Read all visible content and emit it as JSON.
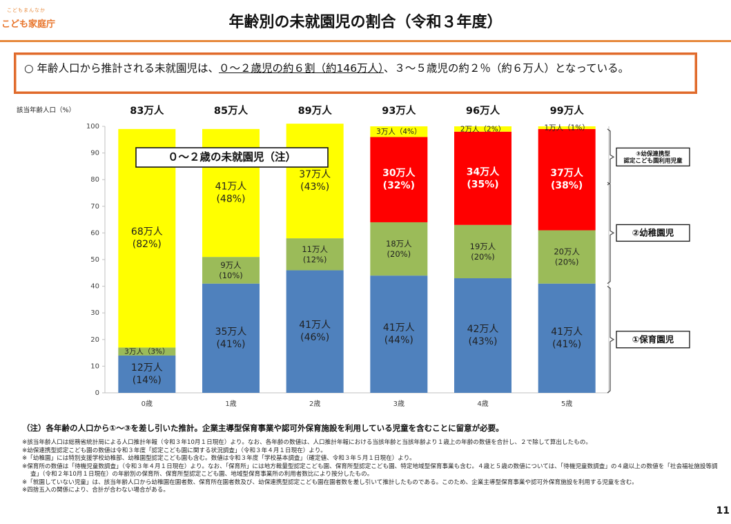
{
  "logo": {
    "tagline": "こどもまんなか",
    "name": "こども家庭庁"
  },
  "page_title": "年齢別の未就園児の割合（令和３年度）",
  "summary": {
    "bullet": "○",
    "text_before": "年齢人口から推計される未就園児は、",
    "underlined": "０～２歳児の約６割（約146万人）",
    "text_after": "、３～５歳児の約２％（約６万人）となっている。"
  },
  "chart_data": {
    "type": "bar",
    "stacked": true,
    "ylabel": "該当年齢人口（%）",
    "ylim": [
      0,
      100
    ],
    "yticks": [
      0,
      10,
      20,
      30,
      40,
      50,
      60,
      70,
      80,
      90,
      100
    ],
    "grid": false,
    "categories": [
      "0歳",
      "1歳",
      "2歳",
      "3歳",
      "4歳",
      "5歳"
    ],
    "totals": [
      "83万人",
      "85万人",
      "89万人",
      "93万人",
      "96万人",
      "99万人"
    ],
    "series": [
      {
        "key": "hoikuen",
        "color": "#4f81bd",
        "textColor": "#1f1f1f",
        "bold": false,
        "values": [
          14,
          41,
          46,
          44,
          43,
          41
        ],
        "labels": [
          "12万人\n(14%)",
          "35万人\n(41%)",
          "41万人\n(46%)",
          "41万人\n(44%)",
          "42万人\n(43%)",
          "41万人\n(41%)"
        ]
      },
      {
        "key": "kodomoen",
        "color": "#9bbb59",
        "textColor": "#1f1f1f",
        "bold": false,
        "values": [
          3,
          10,
          12,
          20,
          20,
          20
        ],
        "labels": [
          "3万人（3%）",
          "9万人\n(10%)",
          "11万人\n(12%)",
          "18万人\n(20%)",
          "19万人\n(20%)",
          "20万人\n(20%)"
        ]
      },
      {
        "key": "youchien",
        "color": "#ff0000",
        "textColor": "#ffffff",
        "bold": true,
        "values": [
          0,
          0,
          0,
          32,
          35,
          38
        ],
        "labels": [
          "",
          "",
          "",
          "30万人\n(32%)",
          "34万人\n(35%)",
          "37万人\n(38%)"
        ]
      },
      {
        "key": "mishuen",
        "color": "#ffff00",
        "textColor": "#1f1f1f",
        "bold": false,
        "values": [
          82,
          48,
          43,
          4,
          2,
          1
        ],
        "labels": [
          "68万人\n(82%)",
          "41万人\n(48%)",
          "37万人\n(43%)",
          "3万人（4%）",
          "2万人（2%）",
          "1万人（1%）"
        ]
      }
    ],
    "annotation": "０～２歳の未就園児（注）",
    "legend": [
      {
        "text": "③幼保連携型\n認定こども園利用児童",
        "range": [
          78,
          99
        ]
      },
      {
        "text": "②幼稚園児",
        "range": [
          41,
          79
        ]
      },
      {
        "text": "①保育園児",
        "range": [
          0,
          40
        ]
      }
    ]
  },
  "footnote_main": "（注）各年齢の人口から①～③を差し引いた推計。企業主導型保育事業や認可外保育施設を利用している児童を含むことに留意が必要。",
  "footnotes": [
    "※該当年齢人口は総務省統計局による人口推計年報（令和３年10月１日現在）より。なお、各年齢の数値は、人口推計年報における当該年齢と当該年齢より１歳上の年齢の数値を合計し、２で除して算出したもの。",
    "※幼保連携型認定こども園の数値は令和３年度「認定こども園に関する状況調査」（令和３年４月１日現在）より。",
    "※「幼稚園」には特別支援学校幼稚部、幼稚園型認定こども園も含む。数値は令和３年度「学校基本調査」（確定値、令和３年５月１日現在）より。",
    "※保育所の数値は「待機児童数調査」（令和３年４月１日現在）より。なお、「保育所」には地方裁量型認定こども園、保育所型認定こども園、特定地域型保育事業も含む。４歳と５歳の数値については、「待機児童数調査」の４歳以上の数値を「社会福祉施設等調査」（令和２年10月１日現在）の年齢別の保育所、保育所型認定こども園、地域型保育事業所の利用者数比により按分したもの。",
    "※「就園していない児童」は、該当年齢人口から幼稚園在園者数、保育所在園者数及び、幼保連携型認定こども園在園者数を差し引いて推計したものである。このため、企業主導型保育事業や認可外保育施設を利用する児童を含む。",
    "※四捨五入の関係により、合計が合わない場合がある。"
  ],
  "page_number": "11"
}
